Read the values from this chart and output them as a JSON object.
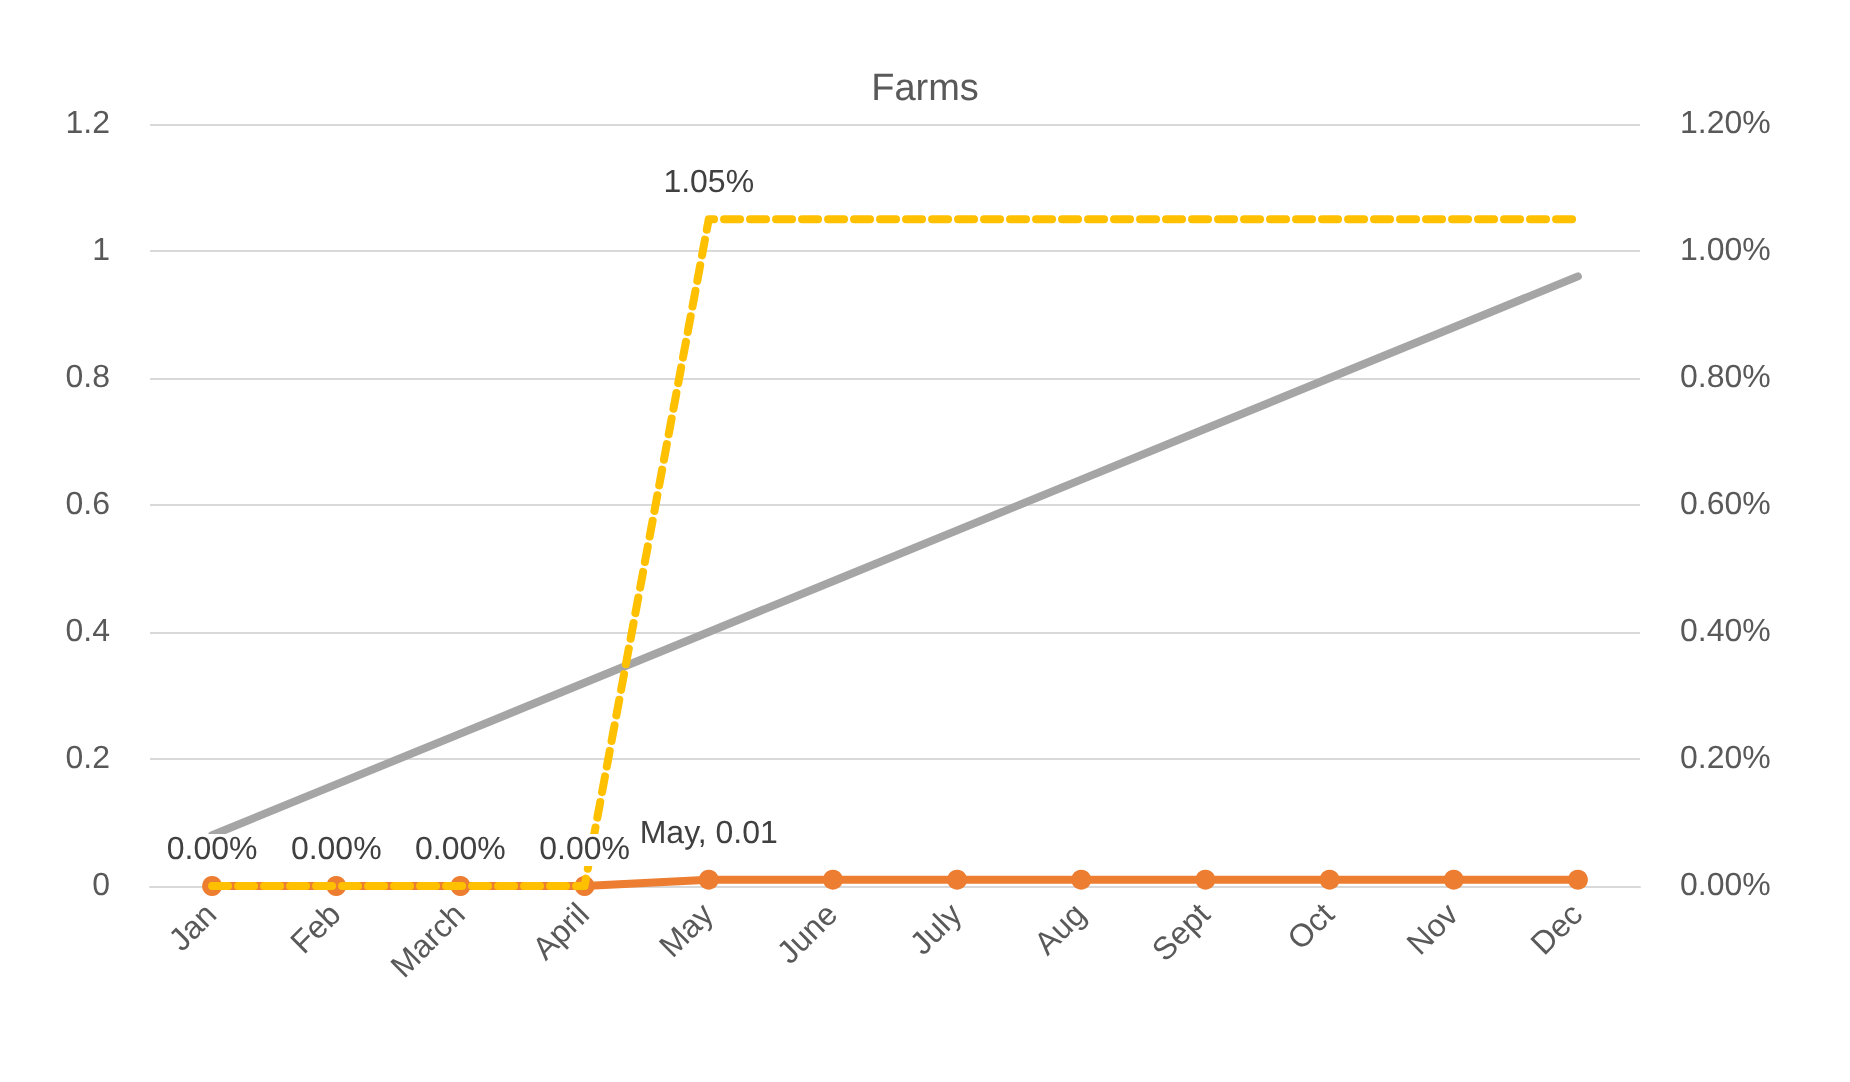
{
  "chart_data": {
    "type": "line",
    "title": "Farms",
    "categories": [
      "Jan",
      "Feb",
      "March",
      "April",
      "May",
      "June",
      "July",
      "Aug",
      "Sept",
      "Oct",
      "Nov",
      "Dec"
    ],
    "series": [
      {
        "color": "#ed7d31",
        "marker": "circle",
        "line_style": "solid",
        "values": [
          0,
          0,
          0,
          0,
          0.01,
          0.01,
          0.01,
          0.01,
          0.01,
          0.01,
          0.01,
          0.01
        ],
        "value_labels": [
          null,
          null,
          null,
          null,
          "May, 0.01",
          null,
          null,
          null,
          null,
          null,
          null,
          null
        ]
      },
      {
        "color": "#ffc000",
        "marker": "none",
        "line_style": "dashed",
        "axis": "y2",
        "values": [
          0,
          0,
          0,
          0,
          1.05,
          1.05,
          1.05,
          1.05,
          1.05,
          1.05,
          1.05,
          1.05
        ],
        "value_labels": [
          "0.00%",
          "0.00%",
          "0.00%",
          "0.00%",
          "1.05%",
          null,
          null,
          null,
          null,
          null,
          null,
          null
        ]
      },
      {
        "color": "#a5a5a5",
        "marker": "none",
        "line_style": "solid",
        "values": [
          0.08,
          0.16,
          0.24,
          0.32,
          0.4,
          0.48,
          0.56,
          0.64,
          0.72,
          0.8,
          0.88,
          0.96
        ]
      }
    ],
    "ylim": [
      0,
      1.2
    ],
    "yticks": [
      0,
      0.2,
      0.4,
      0.6,
      0.8,
      1,
      1.2
    ],
    "y2lim": [
      0,
      1.2
    ],
    "y2ticks": [
      {
        "value": 0,
        "label": "0.00%"
      },
      {
        "value": 0.2,
        "label": "0.20%"
      },
      {
        "value": 0.4,
        "label": "0.40%"
      },
      {
        "value": 0.6,
        "label": "0.60%"
      },
      {
        "value": 0.8,
        "label": "0.80%"
      },
      {
        "value": 1,
        "label": "1.00%"
      },
      {
        "value": 1.2,
        "label": "1.20%"
      }
    ],
    "grid": "y"
  }
}
